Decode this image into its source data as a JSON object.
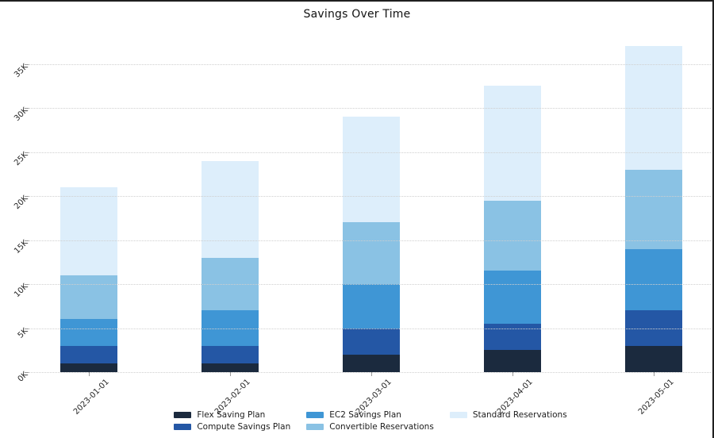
{
  "title": "Savings Over Time",
  "chart_data": {
    "type": "bar",
    "stacked": true,
    "title": "Savings Over Time",
    "categories": [
      "2023-01-01",
      "2023-02-01",
      "2023-03-01",
      "2023-04-01",
      "2023-05-01"
    ],
    "series": [
      {
        "name": "Flex Saving Plan",
        "color": "#1b2a3e",
        "values": [
          1000,
          1000,
          2000,
          2500,
          3000
        ]
      },
      {
        "name": "Compute Savings Plan",
        "color": "#2457a5",
        "values": [
          2000,
          2000,
          3000,
          3000,
          4000
        ]
      },
      {
        "name": "EC2 Savings Plan",
        "color": "#3f96d5",
        "values": [
          3000,
          4000,
          5000,
          6000,
          7000
        ]
      },
      {
        "name": "Convertible Reservations",
        "color": "#8ac2e4",
        "values": [
          5000,
          6000,
          7000,
          8000,
          9000
        ]
      },
      {
        "name": "Standard Reservations",
        "color": "#ddeefb",
        "values": [
          10000,
          11000,
          12000,
          13000,
          14000
        ]
      }
    ],
    "totals": [
      21000,
      24000,
      29000,
      32500,
      37000
    ],
    "ylim": [
      0,
      37500
    ],
    "yticks": [
      0,
      5000,
      10000,
      15000,
      20000,
      25000,
      30000,
      35000
    ],
    "ytick_labels": [
      "0K",
      "5K",
      "10K",
      "15K",
      "20K",
      "25K",
      "30K",
      "35K"
    ],
    "xlabel": "",
    "ylabel": "",
    "grid": true,
    "grid_style": "dotted",
    "legend_position": "bottom",
    "tick_rotation_deg": 45,
    "colors": {
      "grid": "#cfcfcf",
      "tick_text": "#262626",
      "title_text": "#121212",
      "frame_border": "#1f1f1f"
    }
  }
}
